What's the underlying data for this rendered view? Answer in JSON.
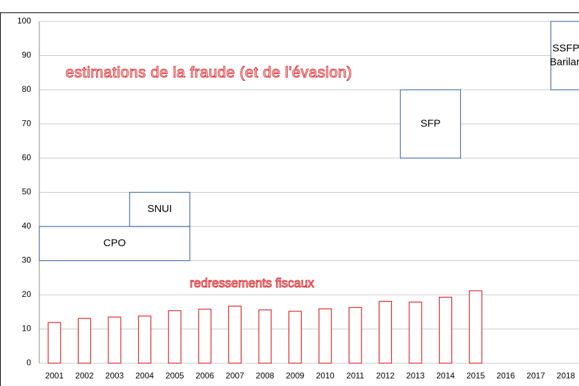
{
  "chart_data": {
    "type": "bar",
    "categories": [
      "2001",
      "2002",
      "2003",
      "2004",
      "2005",
      "2006",
      "2007",
      "2008",
      "2009",
      "2010",
      "2011",
      "2012",
      "2013",
      "2014",
      "2015",
      "2016",
      "2017",
      "2018"
    ],
    "values": [
      11.9,
      13.1,
      13.5,
      13.8,
      15.4,
      15.8,
      16.7,
      15.6,
      15.2,
      15.9,
      16.3,
      18.1,
      17.9,
      19.3,
      21.2,
      null,
      null,
      null
    ],
    "color": "#d9262a",
    "ylim": [
      0,
      100
    ],
    "yticks": [
      0,
      10,
      20,
      30,
      40,
      50,
      60,
      70,
      80,
      90,
      100
    ],
    "grid": true,
    "annotations": [
      "estimations de la fraude (et de l'évasion)",
      "redressements fiscaux"
    ],
    "estimates": [
      {
        "label": "CPO",
        "low": 30,
        "high": 40,
        "from": "2001",
        "to": "2005"
      },
      {
        "label": "SNUI",
        "low": 40,
        "high": 50,
        "from": "2004",
        "to": "2005"
      },
      {
        "label": "SFP",
        "low": 60,
        "high": 80,
        "from": "2013",
        "to": "2014"
      },
      {
        "label": "SSFP\nBarilari",
        "low": 80,
        "high": 100,
        "from": "2018",
        "to": "2018"
      }
    ]
  }
}
